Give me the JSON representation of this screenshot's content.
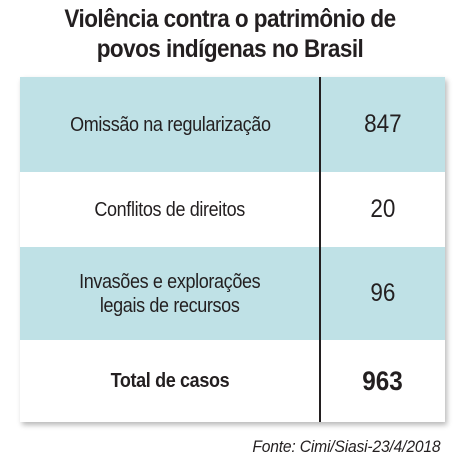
{
  "title": {
    "line1": "Violência contra o patrimônio de",
    "line2": "povos indígenas no Brasil"
  },
  "source": "Fonte: Cimi/Siasi-23/4/2018",
  "colors": {
    "row_shade": "#bfe1e6",
    "text": "#231f20",
    "divider": "#231f20"
  },
  "chart_data": {
    "type": "table",
    "title": "Violência contra o patrimônio de povos indígenas no Brasil",
    "rows": [
      {
        "label": "Omissão na regularização",
        "value": "847",
        "shaded": true,
        "bold": false
      },
      {
        "label": "Conflitos de direitos",
        "value": "20",
        "shaded": false,
        "bold": false
      },
      {
        "label": "Invasões e explorações\nlegais de recursos",
        "value": "96",
        "shaded": true,
        "bold": false
      },
      {
        "label": "Total de casos",
        "value": "963",
        "shaded": false,
        "bold": true
      }
    ],
    "source": "Fonte: Cimi/Siasi-23/4/2018"
  }
}
